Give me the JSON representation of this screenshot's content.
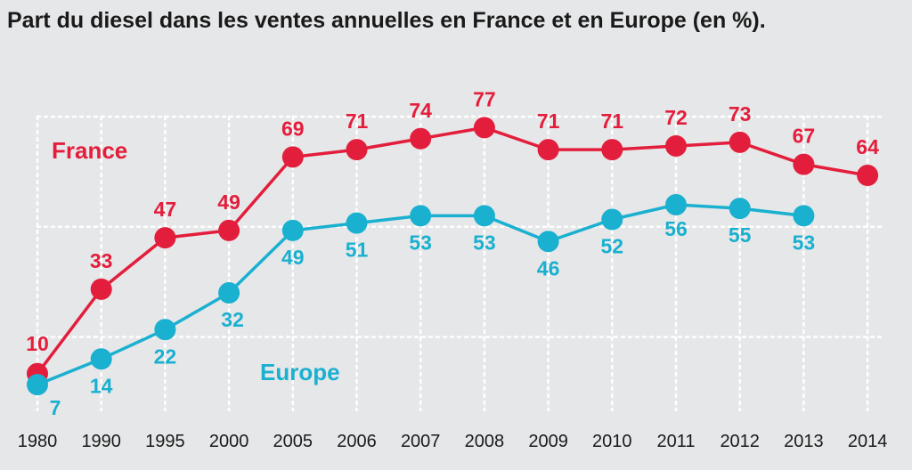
{
  "chart_data": {
    "type": "line",
    "title": "Part du diesel dans les ventes annuelles en France et en Europe (en %).",
    "xlabel": "",
    "ylabel": "",
    "categories": [
      "1980",
      "1990",
      "1995",
      "2000",
      "2005",
      "2006",
      "2007",
      "2008",
      "2009",
      "2010",
      "2011",
      "2012",
      "2013",
      "2014"
    ],
    "series": [
      {
        "name": "France",
        "color": "#e31e3c",
        "values": [
          10,
          33,
          47,
          49,
          69,
          71,
          74,
          77,
          71,
          71,
          72,
          73,
          67,
          64
        ],
        "labels": [
          "10",
          "33",
          "47",
          "49",
          "69",
          "71",
          "74",
          "77",
          "71",
          "71",
          "72",
          "73",
          "67",
          "64"
        ]
      },
      {
        "name": "Europe",
        "color": "#1ab0d0",
        "values": [
          7,
          14,
          22,
          32,
          49,
          51,
          53,
          53,
          46,
          52,
          56,
          55,
          53,
          null
        ],
        "labels": [
          "7",
          "14",
          "22",
          "32",
          "49",
          "51",
          "53",
          "53",
          "46",
          "52",
          "56",
          "55",
          "53",
          ""
        ]
      }
    ],
    "ylim": [
      0,
      80
    ],
    "grid": true,
    "legend": "inline"
  }
}
